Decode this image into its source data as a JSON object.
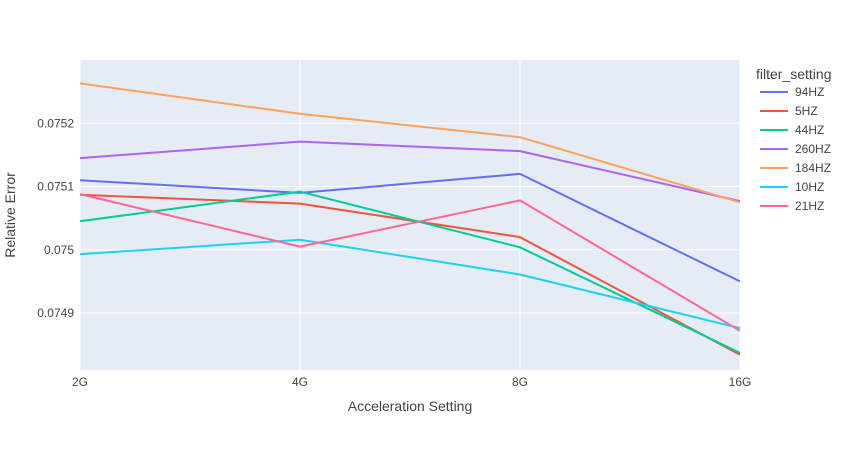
{
  "chart_data": {
    "type": "line",
    "title": "",
    "xlabel": "Acceleration Setting",
    "ylabel": "Relative Error",
    "categories": [
      "2G",
      "4G",
      "8G",
      "16G"
    ],
    "ylim": [
      0.07481,
      0.0753
    ],
    "yticks": [
      0.0749,
      0.075,
      0.0751,
      0.0752
    ],
    "ytick_labels": [
      "0.0749",
      "0.075",
      "0.0751",
      "0.0752"
    ],
    "grid": true,
    "legend_title": "filter_setting",
    "legend_position": "right",
    "plot_bg": "#e5ecf6",
    "series": [
      {
        "name": "94HZ",
        "color": "#636efa",
        "values": [
          0.07511,
          0.07509,
          0.07512,
          0.07495
        ]
      },
      {
        "name": "5HZ",
        "color": "#ef553b",
        "values": [
          0.075087,
          0.075073,
          0.07502,
          0.074834
        ]
      },
      {
        "name": "44HZ",
        "color": "#00cc96",
        "values": [
          0.075045,
          0.075092,
          0.075004,
          0.074837
        ]
      },
      {
        "name": "260HZ",
        "color": "#ab63fa",
        "values": [
          0.075145,
          0.075171,
          0.075156,
          0.075077
        ]
      },
      {
        "name": "184HZ",
        "color": "#ffa15a",
        "values": [
          0.075263,
          0.075215,
          0.075178,
          0.075075
        ]
      },
      {
        "name": "10HZ",
        "color": "#19d3f3",
        "values": [
          0.074993,
          0.075016,
          0.074961,
          0.074876
        ]
      },
      {
        "name": "21HZ",
        "color": "#ff6692",
        "values": [
          0.075088,
          0.075005,
          0.075078,
          0.074872
        ]
      }
    ]
  }
}
